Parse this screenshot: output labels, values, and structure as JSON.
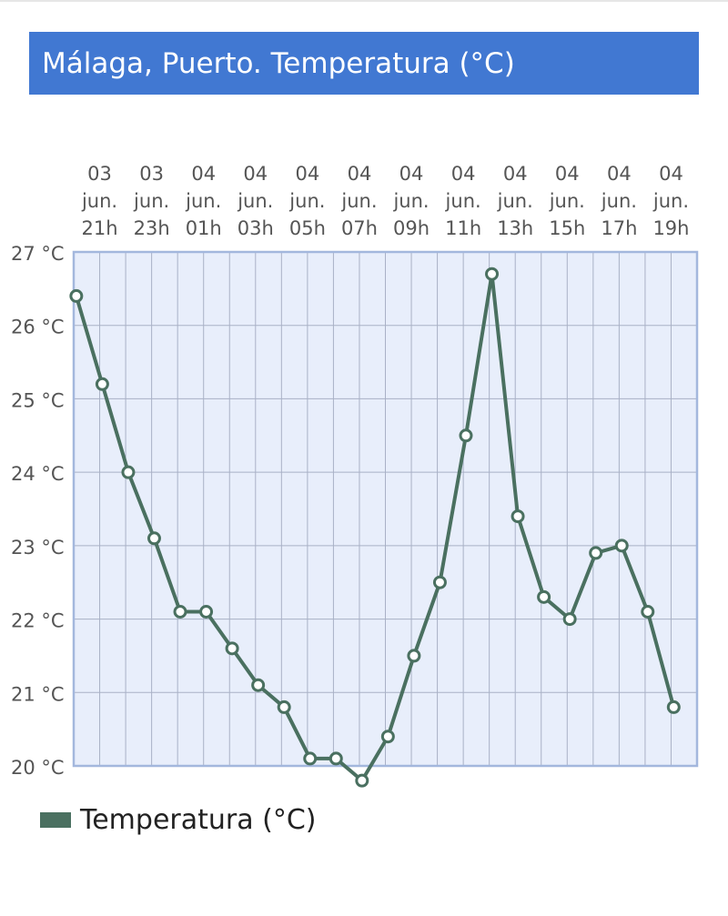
{
  "title": "Málaga, Puerto. Temperatura (°C)",
  "legend": {
    "label": "Temperatura (°C)"
  },
  "colors": {
    "title_bg": "#4178d2",
    "line": "#4a7060",
    "plot_bg": "#e8eefb",
    "grid": "#a9b1c6",
    "border": "#a3b7dd",
    "tick_text": "#555555"
  },
  "chart_data": {
    "type": "line",
    "title": "Málaga, Puerto. Temperatura (°C)",
    "xlabel": "",
    "ylabel": "",
    "ylim": [
      20,
      27
    ],
    "y_ticks": [
      "27 °C",
      "26 °C",
      "25 °C",
      "24 °C",
      "23 °C",
      "22 °C",
      "21 °C",
      "20 °C"
    ],
    "x_ticks": [
      [
        "03",
        "jun.",
        "21h"
      ],
      [
        "03",
        "jun.",
        "23h"
      ],
      [
        "04",
        "jun.",
        "01h"
      ],
      [
        "04",
        "jun.",
        "03h"
      ],
      [
        "04",
        "jun.",
        "05h"
      ],
      [
        "04",
        "jun.",
        "07h"
      ],
      [
        "04",
        "jun.",
        "09h"
      ],
      [
        "04",
        "jun.",
        "11h"
      ],
      [
        "04",
        "jun.",
        "13h"
      ],
      [
        "04",
        "jun.",
        "15h"
      ],
      [
        "04",
        "jun.",
        "17h"
      ],
      [
        "04",
        "jun.",
        "19h"
      ]
    ],
    "x": [
      "03 jun. 21h",
      "03 jun. 22h",
      "03 jun. 23h",
      "04 jun. 00h",
      "04 jun. 01h",
      "04 jun. 02h",
      "04 jun. 03h",
      "04 jun. 04h",
      "04 jun. 05h",
      "04 jun. 06h",
      "04 jun. 07h",
      "04 jun. 08h",
      "04 jun. 09h",
      "04 jun. 10h",
      "04 jun. 11h",
      "04 jun. 12h",
      "04 jun. 13h",
      "04 jun. 14h",
      "04 jun. 15h",
      "04 jun. 16h",
      "04 jun. 17h",
      "04 jun. 18h",
      "04 jun. 19h",
      "04 jun. 20h"
    ],
    "series": [
      {
        "name": "Temperatura (°C)",
        "values": [
          26.4,
          25.2,
          24.0,
          23.1,
          22.1,
          22.1,
          21.6,
          21.1,
          20.8,
          20.1,
          20.1,
          19.8,
          20.4,
          21.5,
          22.5,
          24.5,
          26.7,
          23.4,
          22.3,
          22.0,
          22.9,
          23.0,
          22.1,
          20.8
        ]
      }
    ],
    "grid": true,
    "legend_position": "bottom-left"
  }
}
